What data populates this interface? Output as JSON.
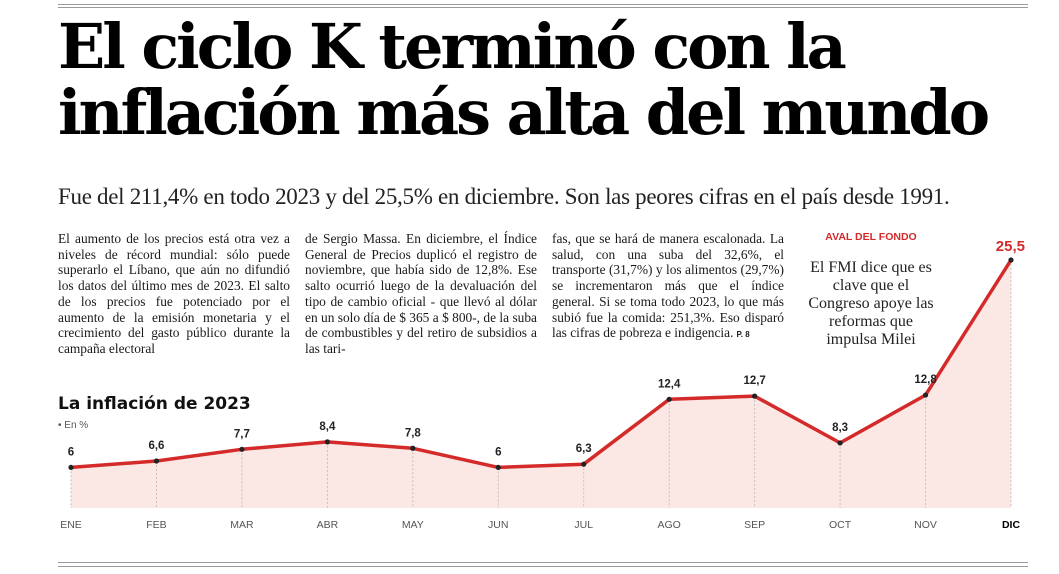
{
  "headline": {
    "line1": "El ciclo K terminó con la",
    "line2": "inflación más alta del mundo"
  },
  "subtitle": "Fue del 211,4% en todo 2023 y del 25,5% en diciembre. Son las peores cifras en el país desde 1991.",
  "body": {
    "col1": "El aumento de los precios está otra vez a niveles de récord mundial: sólo puede superarlo el Líbano, que aún no difundió los datos del último mes de 2023. El salto de los precios fue potenciado por el aumento de la emisión monetaria y el crecimiento del gasto público durante la campaña electoral",
    "col2": "de Sergio Massa. En diciembre, el Índice General de Precios duplicó el registro de noviembre, que había sido de 12,8%. Ese salto ocurrió luego de la devaluación del tipo de cambio oficial - que llevó al dólar en un solo día de $ 365 a $ 800-, de la suba de combustibles y del retiro de subsidios a las tari-",
    "col3": "fas, que se hará de manera escalonada. La salud, con una suba del 32,6%, el transporte (31,7%) y los alimentos (29,7%) se incrementaron más que el índice general. Si se toma todo 2023, lo que más subió fue la comida: 251,3%. Eso disparó las cifras de pobreza e indigencia.",
    "page_ref": "P. 8"
  },
  "aval": {
    "kicker": "AVAL DEL FONDO",
    "text": "El FMI dice que es clave que el Congreso apoye las reformas que impulsa Milei"
  },
  "chart_title": "La inflación de 2023",
  "chart_unit": "• En %",
  "colors": {
    "line": "#d42a2a",
    "fill": "#fbe7e3",
    "kicker": "#d42a2a"
  },
  "chart_data": {
    "type": "area",
    "title": "La inflación de 2023",
    "unit": "En %",
    "categories": [
      "ENE",
      "FEB",
      "MAR",
      "ABR",
      "MAY",
      "JUN",
      "JUL",
      "AGO",
      "SEP",
      "OCT",
      "NOV",
      "DIC"
    ],
    "values": [
      6,
      6.6,
      7.7,
      8.4,
      7.8,
      6,
      6.3,
      12.4,
      12.7,
      8.3,
      12.8,
      25.5
    ],
    "labels": [
      "6",
      "6,6",
      "7,7",
      "8,4",
      "7,8",
      "6",
      "6,3",
      "12,4",
      "12,7",
      "8,3",
      "12,8",
      "25,5"
    ],
    "highlight_category": "DIC",
    "ylim": [
      3.5,
      25.5
    ],
    "grid": false
  }
}
